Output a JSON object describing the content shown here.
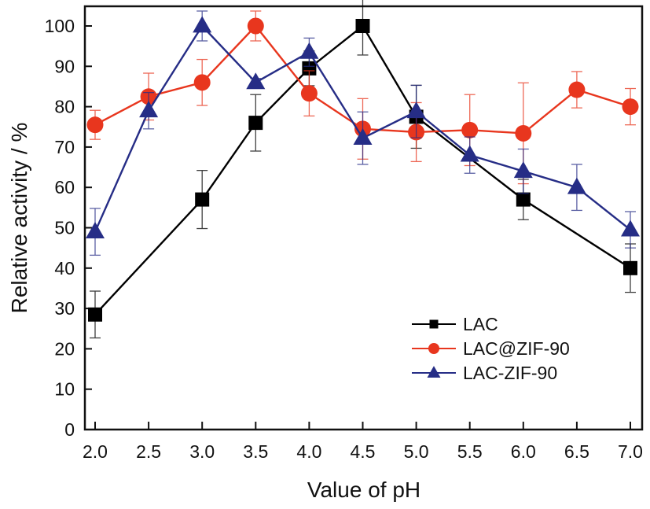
{
  "chart_data": {
    "type": "line",
    "title": "",
    "xlabel": "Value of pH",
    "ylabel": "Relative activity / %",
    "xlim": [
      1.95,
      7.07
    ],
    "ylim": [
      0,
      105
    ],
    "xticks": [
      2.0,
      2.5,
      3.0,
      3.5,
      4.0,
      4.5,
      5.0,
      5.5,
      6.0,
      6.5,
      7.0
    ],
    "xtick_labels": [
      "2.0",
      "2.5",
      "3.0",
      "3.5",
      "4.0",
      "4.5",
      "5.0",
      "5.5",
      "6.0",
      "6.5",
      "7.0"
    ],
    "yticks": [
      0,
      10,
      20,
      30,
      40,
      50,
      60,
      70,
      80,
      90,
      100
    ],
    "ytick_labels": [
      "0",
      "10",
      "20",
      "30",
      "40",
      "50",
      "60",
      "70",
      "80",
      "90",
      "100"
    ],
    "grid": false,
    "legend_position": "bottom-right",
    "series": [
      {
        "name": "LAC",
        "color": "#000000",
        "marker": "square",
        "x": [
          2.0,
          3.0,
          3.5,
          4.0,
          4.5,
          5.0,
          6.0,
          7.0
        ],
        "y": [
          28.5,
          57,
          76,
          89.5,
          100,
          77.5,
          57,
          40
        ],
        "err": [
          5.8,
          7.2,
          7,
          4.3,
          7.2,
          7.8,
          5,
          6
        ]
      },
      {
        "name": "LAC@ZIF-90",
        "color": "#e8361e",
        "marker": "circle",
        "x": [
          2.0,
          2.5,
          3.0,
          3.5,
          4.0,
          4.5,
          5.0,
          5.5,
          6.0,
          6.5,
          7.0
        ],
        "y": [
          75.5,
          82.5,
          86,
          100,
          83.3,
          74.5,
          73.7,
          74.2,
          73.4,
          84.2,
          80
        ],
        "err": [
          3.6,
          5.8,
          5.7,
          3.7,
          5.6,
          7.5,
          7.3,
          8.8,
          12.5,
          4.5,
          4.5
        ]
      },
      {
        "name": "LAC-ZIF-90",
        "color": "#262d86",
        "marker": "triangle",
        "x": [
          2.0,
          2.5,
          3.0,
          3.5,
          4.0,
          4.5,
          5.0,
          5.5,
          6.0,
          6.5,
          7.0
        ],
        "y": [
          49,
          79,
          100,
          86,
          93.5,
          72.2,
          78.8,
          68,
          64,
          60,
          49.5
        ],
        "err": [
          5.8,
          4.5,
          3.7,
          1,
          3.5,
          6.5,
          6.5,
          4.5,
          5.5,
          5.7,
          4.5
        ]
      }
    ]
  }
}
